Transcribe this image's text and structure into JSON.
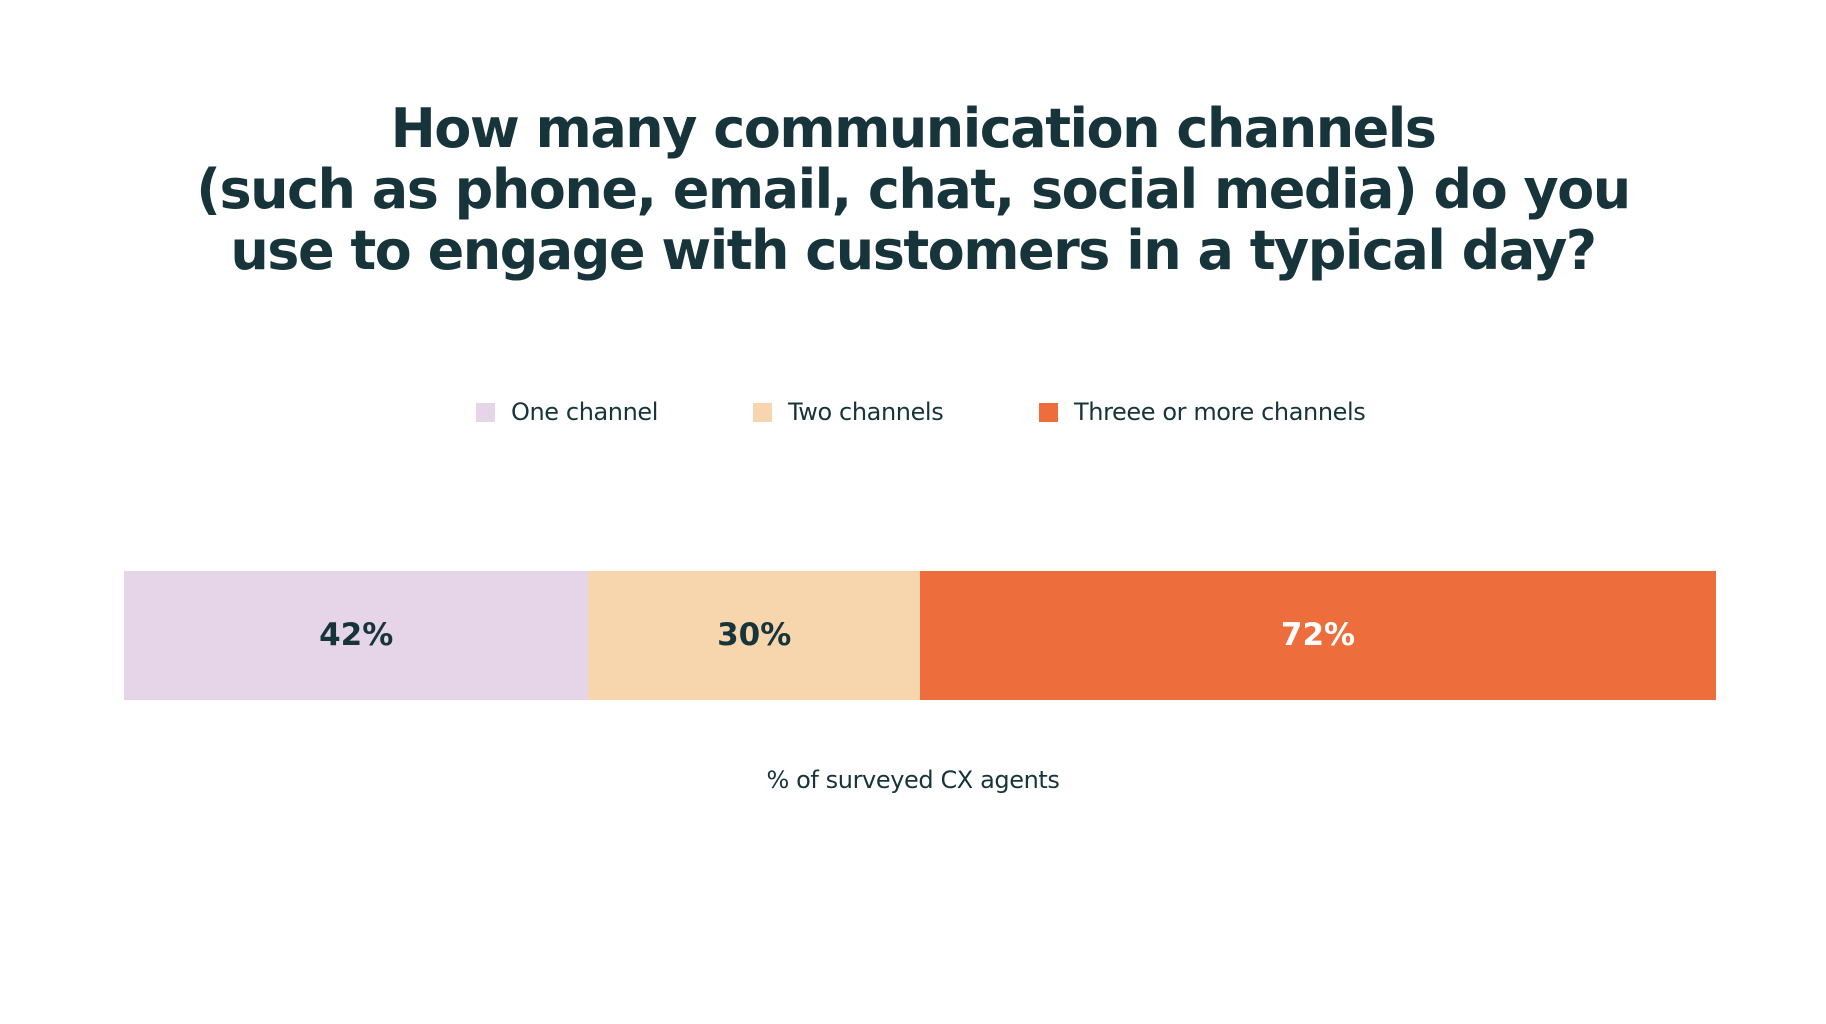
{
  "chart_data": {
    "type": "bar",
    "orientation": "horizontal-stacked",
    "title_lines": [
      "How many communication channels",
      "(such as phone, email, chat, social media) do you",
      "use to engage with customers in a typical day?"
    ],
    "xlabel": "% of surveyed CX agents",
    "legend_position": "top",
    "grid": false,
    "series": [
      {
        "name": "One channel",
        "value": 42,
        "label": "42%",
        "color": "#e6d5e8",
        "label_color": "#17343a"
      },
      {
        "name": "Two channels",
        "value": 30,
        "label": "30%",
        "color": "#f7d6ae",
        "label_color": "#17343a"
      },
      {
        "name": "Threee or more channels",
        "value": 72,
        "label": "72%",
        "color": "#ee6d3c",
        "label_color": "#ffffff"
      }
    ]
  }
}
